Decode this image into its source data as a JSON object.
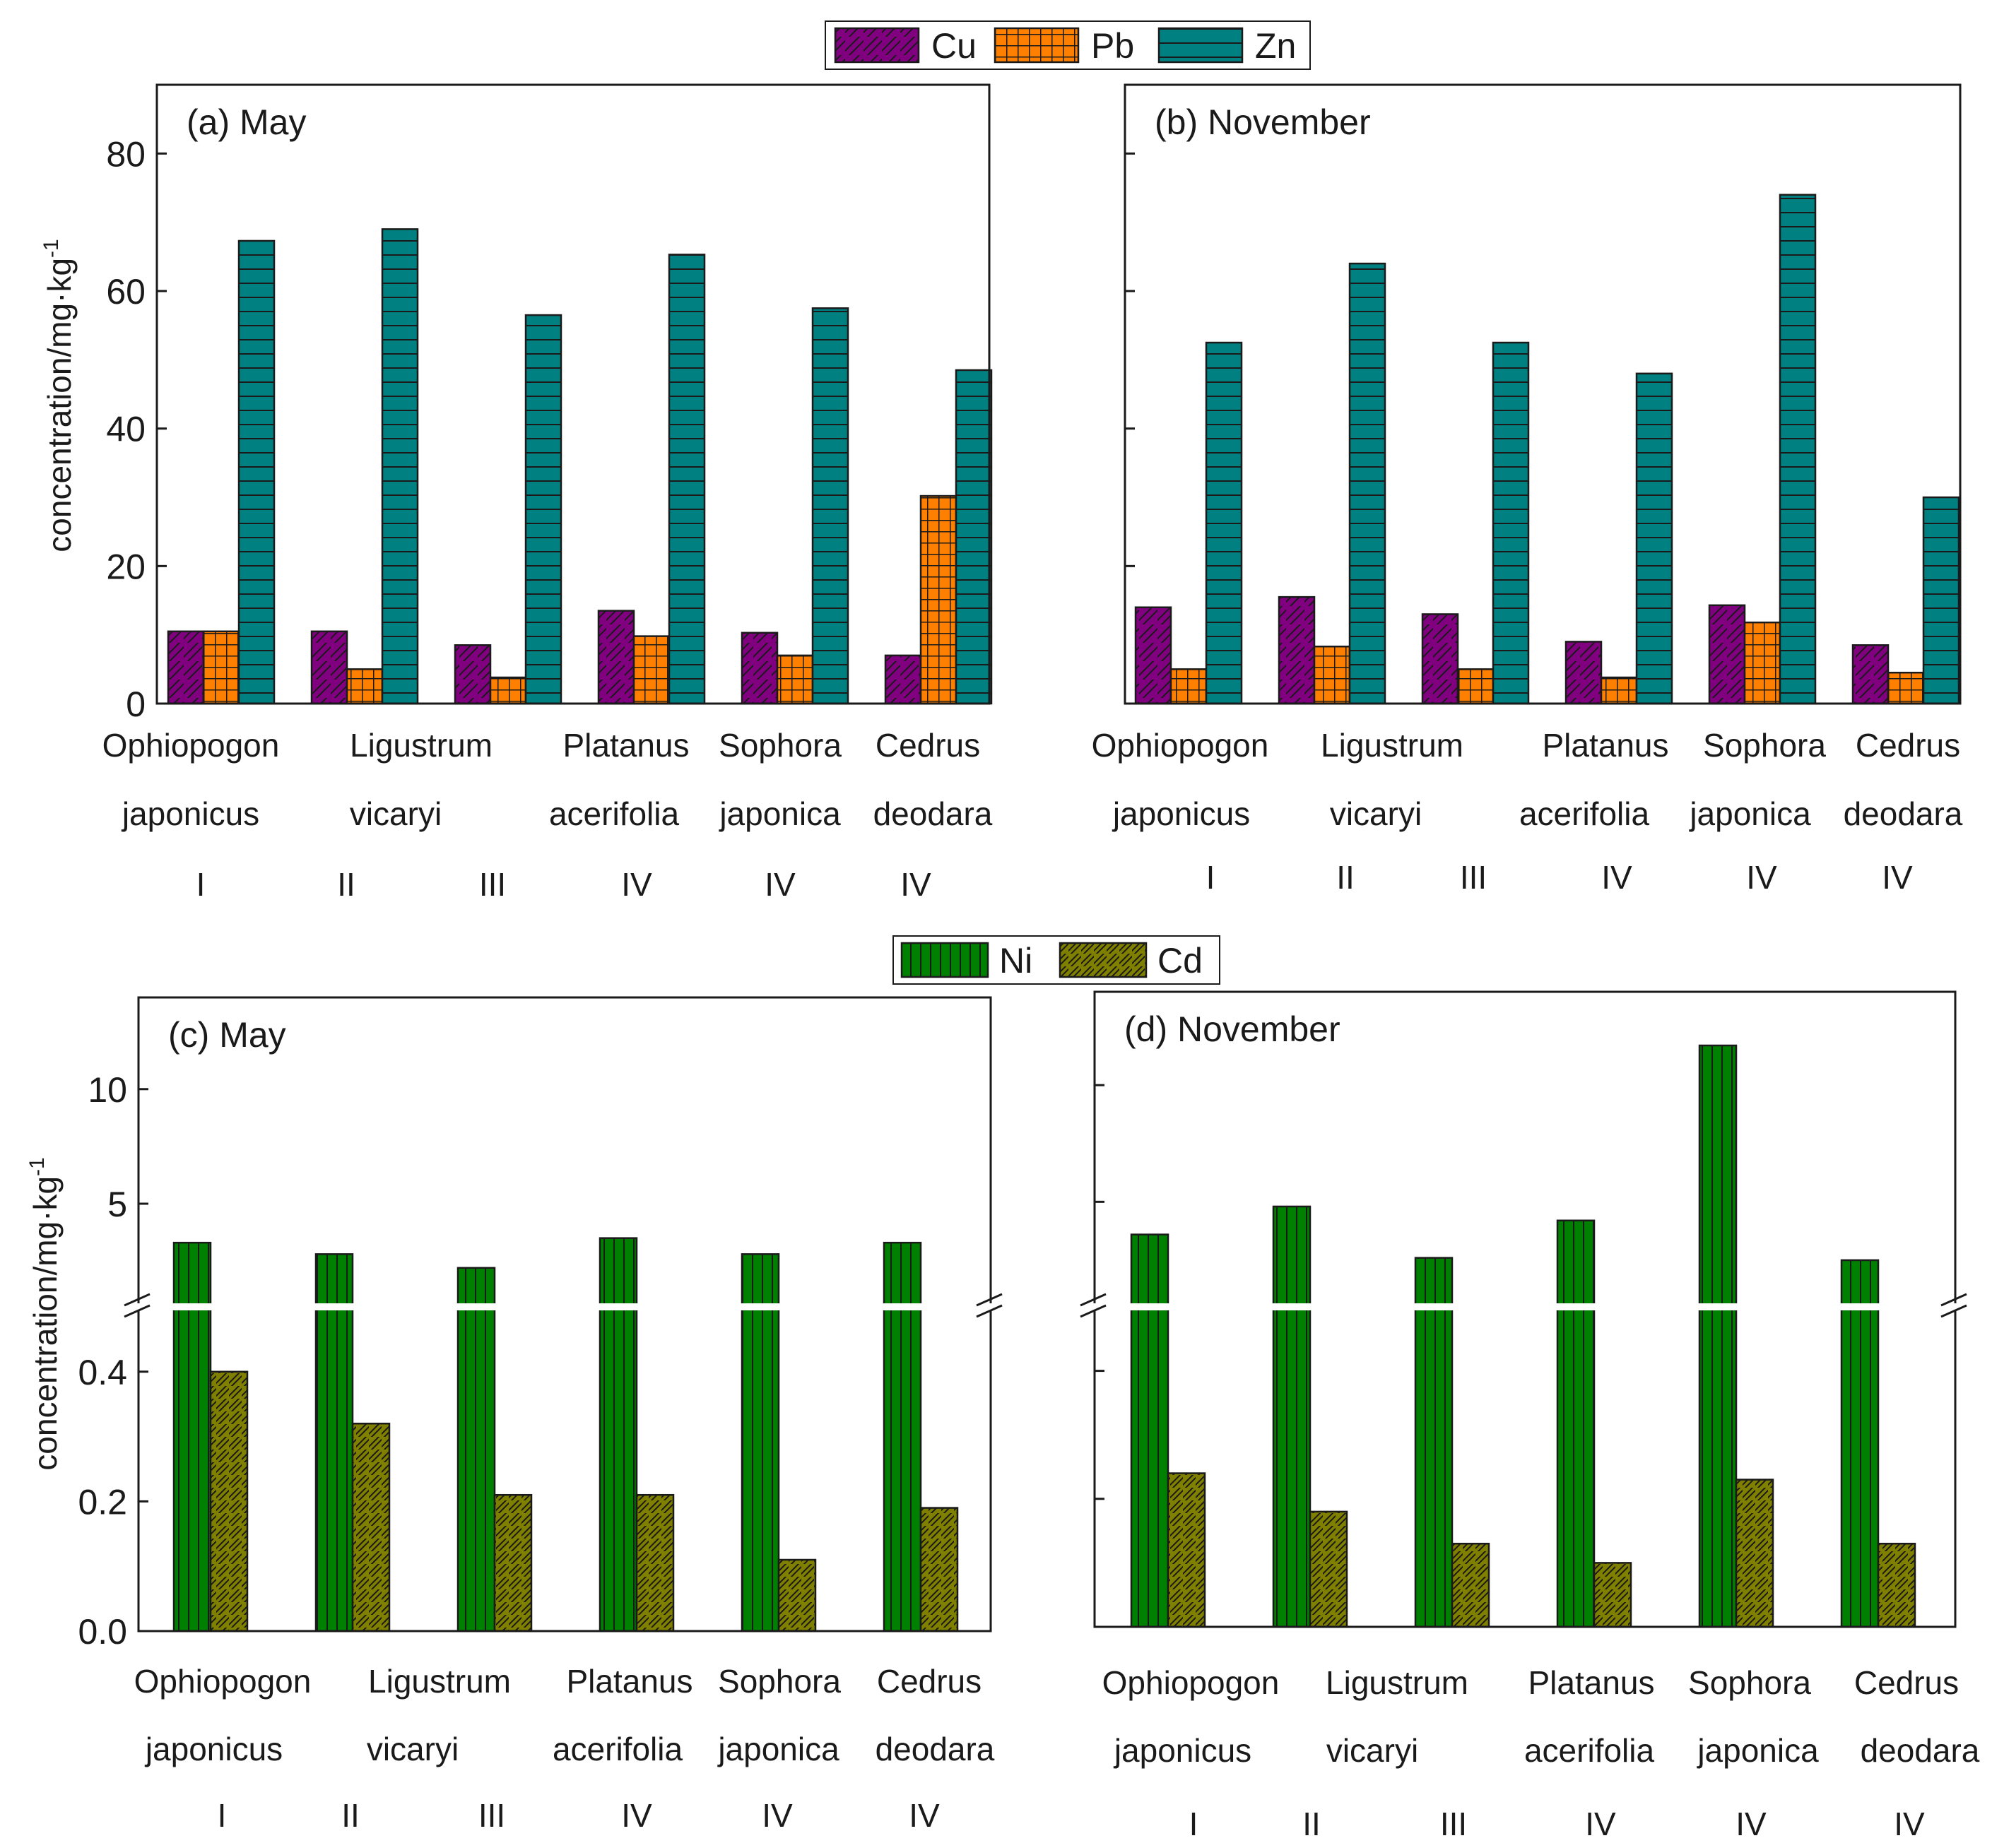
{
  "colors": {
    "Cu": "#800080",
    "Pb": "#ff8000",
    "Zn": "#008080",
    "Ni": "#008000",
    "Cd": "#808000"
  },
  "legend_top": [
    "Cu",
    "Pb",
    "Zn"
  ],
  "legend_bottom": [
    "Ni",
    "Cd"
  ],
  "chart_data": [
    {
      "id": "a",
      "type": "bar",
      "title": "(a) May",
      "ylabel": "concentration/mg·kg",
      "ylabel_sup": "-1",
      "ylim": [
        0,
        90
      ],
      "yticks": [
        "0",
        "20",
        "40",
        "60",
        "80"
      ],
      "categories": [
        [
          "Ophiopogon",
          "japonicus",
          "I"
        ],
        [
          "Ligustrum",
          "vicaryi",
          "II"
        ],
        [
          "",
          "",
          "III"
        ],
        [
          "Platanus",
          "acerifolia",
          "IV"
        ],
        [
          "Sophora",
          "japonica",
          "IV"
        ],
        [
          "Cedrus",
          "deodara",
          "IV"
        ]
      ],
      "series": [
        {
          "name": "Cu",
          "values": [
            10.5,
            10.5,
            8.5,
            13.5,
            10.3,
            7.0
          ]
        },
        {
          "name": "Pb",
          "values": [
            10.5,
            5.0,
            3.8,
            9.8,
            7.0,
            30.2
          ]
        },
        {
          "name": "Zn",
          "values": [
            67.3,
            69.0,
            56.5,
            65.3,
            57.5,
            48.5
          ]
        }
      ]
    },
    {
      "id": "b",
      "type": "bar",
      "title": "(b) November",
      "ylim": [
        0,
        90
      ],
      "categories": [
        [
          "Ophiopogon",
          "japonicus",
          "I"
        ],
        [
          "Ligustrum",
          "vicaryi",
          "II"
        ],
        [
          "",
          "",
          "III"
        ],
        [
          "Platanus",
          "acerifolia",
          "IV"
        ],
        [
          "Sophora",
          "japonica",
          "IV"
        ],
        [
          "Cedrus",
          "deodara",
          "IV"
        ]
      ],
      "series": [
        {
          "name": "Cu",
          "values": [
            14.0,
            15.5,
            13.0,
            9.0,
            14.3,
            8.5
          ]
        },
        {
          "name": "Pb",
          "values": [
            5.0,
            8.3,
            5.0,
            3.8,
            11.8,
            4.5
          ]
        },
        {
          "name": "Zn",
          "values": [
            52.5,
            64.0,
            52.5,
            48.0,
            74.0,
            30.0
          ]
        }
      ]
    },
    {
      "id": "c",
      "type": "bar",
      "title": "(c) May",
      "ylabel": "concentration/mg·kg",
      "ylabel_sup": "-1",
      "axis_break": true,
      "ylim_lower": [
        0,
        0.5
      ],
      "ylim_upper": [
        0.5,
        14
      ],
      "yticks_lower": [
        "0.0",
        "0.2",
        "0.4"
      ],
      "yticks_upper": [
        "5",
        "10"
      ],
      "categories": [
        [
          "Ophiopogon",
          "japonicus",
          "I"
        ],
        [
          "Ligustrum",
          "vicaryi",
          "II"
        ],
        [
          "",
          "",
          "III"
        ],
        [
          "Platanus",
          "acerifolia",
          "IV"
        ],
        [
          "Sophora",
          "japonica",
          "IV"
        ],
        [
          "Cedrus",
          "deodara",
          "IV"
        ]
      ],
      "series": [
        {
          "name": "Ni",
          "values": [
            3.3,
            2.8,
            2.2,
            3.5,
            2.8,
            3.3
          ]
        },
        {
          "name": "Cd",
          "values": [
            0.4,
            0.32,
            0.21,
            0.21,
            0.11,
            0.19
          ]
        }
      ]
    },
    {
      "id": "d",
      "type": "bar",
      "title": "(d) November",
      "axis_break": true,
      "ylim_lower": [
        0,
        0.5
      ],
      "ylim_upper": [
        0.5,
        14
      ],
      "categories": [
        [
          "Ophiopogon",
          "japonicus",
          "I"
        ],
        [
          "Ligustrum",
          "vicaryi",
          "II"
        ],
        [
          "",
          "",
          "III"
        ],
        [
          "Platanus",
          "acerifolia",
          "IV"
        ],
        [
          "Sophora",
          "japonica",
          "IV"
        ],
        [
          "Cedrus",
          "deodara",
          "IV"
        ]
      ],
      "series": [
        {
          "name": "Ni",
          "values": [
            3.6,
            4.8,
            2.6,
            4.2,
            11.7,
            2.5
          ]
        },
        {
          "name": "Cd",
          "values": [
            0.24,
            0.18,
            0.13,
            0.1,
            0.23,
            0.13
          ]
        }
      ]
    }
  ]
}
